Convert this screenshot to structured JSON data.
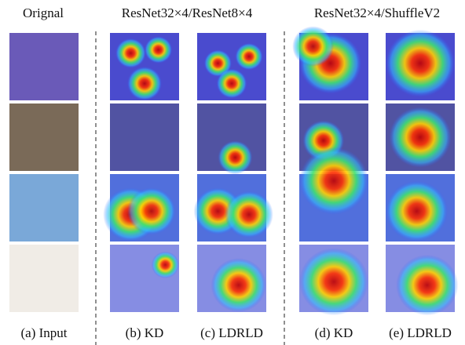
{
  "headers": {
    "original": "Orignal",
    "group1": "ResNet32×4/ResNet8×4",
    "group2": "ResNet32×4/ShuffleV2"
  },
  "captions": [
    "(a) Input",
    "(b) KD",
    "(c) LDRLD",
    "(d) KD",
    "(e) LDRLD"
  ]
}
